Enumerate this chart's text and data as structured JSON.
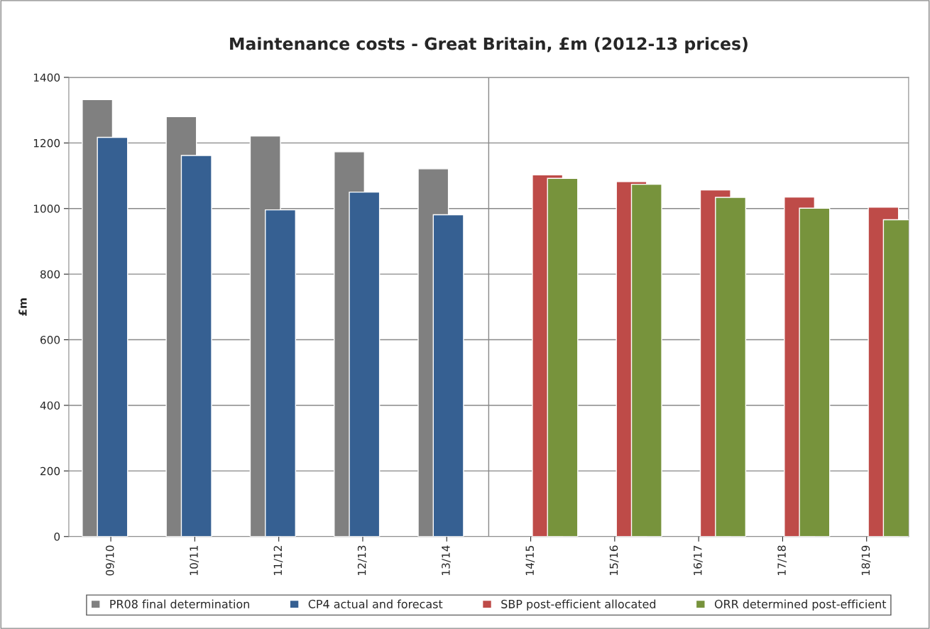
{
  "chart_data": {
    "type": "bar",
    "title": "Maintenance costs - Great Britain, £m (2012-13 prices)",
    "ylabel": "£m",
    "categories": [
      "09/10",
      "10/11",
      "11/12",
      "12/13",
      "13/14",
      "14/15",
      "15/16",
      "16/17",
      "17/18",
      "18/19"
    ],
    "series": [
      {
        "name": "PR08 final determination",
        "color": "#808080",
        "values": [
          1332,
          1280,
          1221,
          1173,
          1121,
          null,
          null,
          null,
          null,
          null
        ]
      },
      {
        "name": "CP4 actual and forecast",
        "color": "#366092",
        "values": [
          1217,
          1162,
          996,
          1050,
          981,
          null,
          null,
          null,
          null,
          null
        ]
      },
      {
        "name": "SBP post-efficient allocated",
        "color": "#be4b48",
        "values": [
          null,
          null,
          null,
          null,
          null,
          1103,
          1082,
          1057,
          1035,
          1004
        ]
      },
      {
        "name": "ORR determined post-efficient",
        "color": "#77933c",
        "values": [
          null,
          null,
          null,
          null,
          null,
          1092,
          1074,
          1034,
          1001,
          966
        ]
      }
    ],
    "ylim": [
      0,
      1400
    ],
    "yticks": [
      0,
      200,
      400,
      600,
      800,
      1000,
      1200,
      1400
    ],
    "grid": "y",
    "legend": "bottom"
  }
}
